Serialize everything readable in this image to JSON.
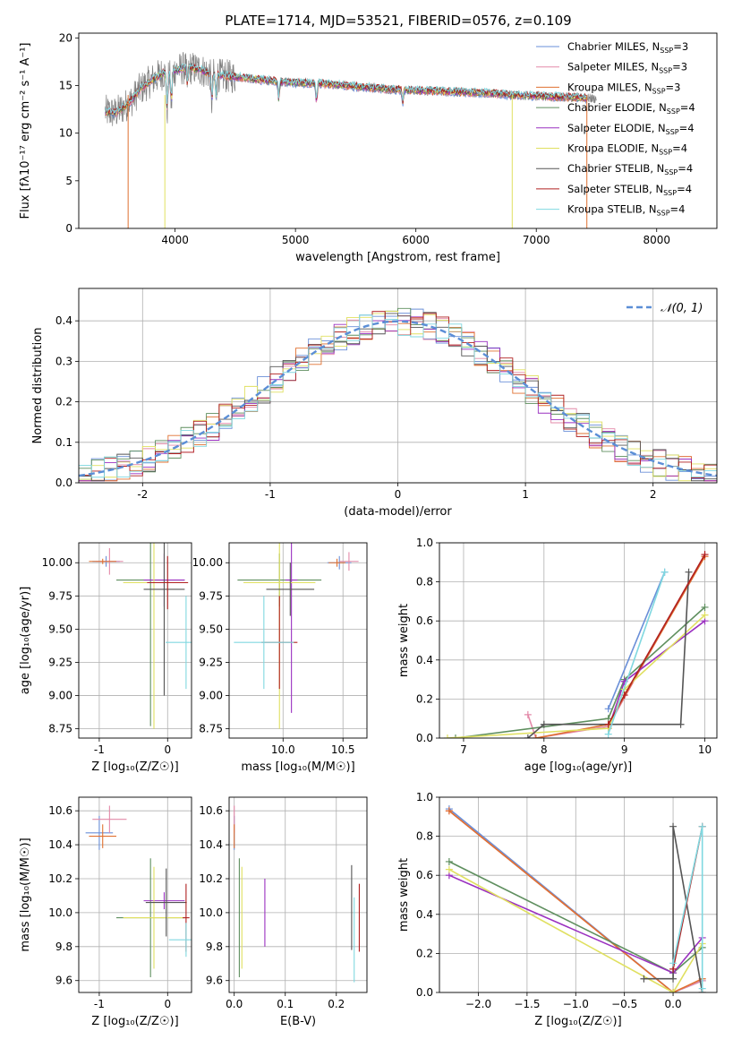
{
  "figure": {
    "title": "PLATE=1714, MJD=53521, FIBERID=0576, z=0.109"
  },
  "colors": {
    "series": [
      "#6a8fd8",
      "#e389a8",
      "#e07030",
      "#5f8f5f",
      "#9a30c0",
      "#e0e060",
      "#555555",
      "#b02020",
      "#80d8e0"
    ],
    "data_spectrum": "#808080",
    "normal_curve": "#5b8ed6",
    "grid": "#b0b0b0"
  },
  "legend_spectrum": [
    {
      "name": "Chabrier MILES",
      "nssp": "N",
      "sub": "SSP",
      "tail": "=3"
    },
    {
      "name": "Salpeter MILES",
      "nssp": "N",
      "sub": "SSP",
      "tail": "=3"
    },
    {
      "name": "Kroupa MILES",
      "nssp": "N",
      "sub": "SSP",
      "tail": "=3"
    },
    {
      "name": "Chabrier ELODIE",
      "nssp": "N",
      "sub": "SSP",
      "tail": "=4"
    },
    {
      "name": "Salpeter ELODIE",
      "nssp": "N",
      "sub": "SSP",
      "tail": "=4"
    },
    {
      "name": "Kroupa ELODIE",
      "nssp": "N",
      "sub": "SSP",
      "tail": "=4"
    },
    {
      "name": "Chabrier STELIB",
      "nssp": "N",
      "sub": "SSP",
      "tail": "=4"
    },
    {
      "name": "Salpeter STELIB",
      "nssp": "N",
      "sub": "SSP",
      "tail": "=4"
    },
    {
      "name": "Kroupa STELIB",
      "nssp": "N",
      "sub": "SSP",
      "tail": "=4"
    }
  ],
  "chart_data": [
    {
      "id": "spectrum",
      "type": "line",
      "xlabel": "wavelength [Angstrom, rest frame]",
      "ylabel": "Flux [fλ10⁻¹⁷ erg cm⁻² s⁻¹ A⁻¹]",
      "xlim": [
        3200,
        8500
      ],
      "ylim": [
        0,
        20.5
      ],
      "xticks": [
        4000,
        5000,
        6000,
        7000,
        8000
      ],
      "yticks": [
        0,
        5,
        10,
        15,
        20
      ],
      "grid": false,
      "legend": "upper-right",
      "continuum": {
        "x": [
          3400,
          3500,
          3550,
          3600,
          3650,
          3700,
          3750,
          3800,
          3850,
          3900,
          3950,
          4000,
          4100,
          4200,
          4300,
          4400,
          4500,
          4600,
          4700,
          4800,
          4900,
          5000,
          5200,
          5400,
          5600,
          5800,
          6000,
          6200,
          6400,
          6600,
          6800,
          7000,
          7200,
          7400,
          7500
        ],
        "y": [
          12.3,
          12.1,
          12.5,
          13.0,
          13.6,
          14.5,
          15.0,
          15.5,
          15.9,
          16.3,
          16.2,
          16.6,
          16.9,
          16.7,
          16.2,
          16.0,
          15.9,
          15.8,
          15.6,
          15.5,
          15.4,
          15.3,
          15.2,
          15.0,
          14.8,
          14.6,
          14.5,
          14.4,
          14.3,
          14.2,
          14.0,
          13.9,
          13.8,
          13.7,
          13.6
        ]
      },
      "data_x_range": [
        3420,
        7500
      ],
      "model_x_range": [
        3420,
        7420
      ]
    },
    {
      "id": "residuals",
      "type": "line",
      "xlabel": "(data-model)/error",
      "ylabel": "Normed distribution",
      "xlim": [
        -2.5,
        2.5
      ],
      "ylim": [
        0,
        0.48
      ],
      "xticks": [
        -2,
        -1,
        0,
        1,
        2
      ],
      "yticks": [
        0.0,
        0.1,
        0.2,
        0.3,
        0.4
      ],
      "grid": true,
      "legend": "upper-right",
      "legend_label": "𝒩(0, 1)",
      "normal": {
        "mu": 0,
        "sigma": 1
      },
      "bin_width": 0.1
    },
    {
      "id": "age_vs_Z",
      "type": "scatter",
      "xlabel": "Z [log₁₀(Z/Z☉)]",
      "ylabel": "age  [log₁₀(age/yr)]",
      "xlim": [
        -1.3,
        0.35
      ],
      "ylim": [
        8.68,
        10.15
      ],
      "xticks": [
        -1,
        0
      ],
      "yticks": [
        8.75,
        9.0,
        9.25,
        9.5,
        9.75,
        10.0
      ],
      "grid": true,
      "points": [
        {
          "s": 0,
          "x": -0.9,
          "y": 10.01,
          "xerr": 0.2,
          "yerr": 0.04
        },
        {
          "s": 1,
          "x": -0.85,
          "y": 10.01,
          "xerr": 0.2,
          "yerr": 0.1
        },
        {
          "s": 2,
          "x": -0.95,
          "y": 10.01,
          "xerr": 0.2,
          "yerr": 0.02
        },
        {
          "s": 3,
          "x": -0.25,
          "y": 9.87,
          "xerr": 0.5,
          "yerr": 1.1
        },
        {
          "s": 4,
          "x": -0.05,
          "y": 9.87,
          "xerr": 0.3,
          "yerr": 0.2
        },
        {
          "s": 5,
          "x": -0.2,
          "y": 9.85,
          "xerr": 0.45,
          "yerr": 1.1
        },
        {
          "s": 6,
          "x": -0.05,
          "y": 9.8,
          "xerr": 0.3,
          "yerr": 0.8
        },
        {
          "s": 7,
          "x": 0.0,
          "y": 9.85,
          "xerr": 0.3,
          "yerr": 0.2
        },
        {
          "s": 8,
          "x": 0.27,
          "y": 9.4,
          "xerr": 0.3,
          "yerr": 0.35
        }
      ]
    },
    {
      "id": "age_vs_mass",
      "type": "scatter",
      "xlabel": "mass [log₁₀(M/M☉)]",
      "ylabel": "",
      "xlim": [
        9.55,
        10.7
      ],
      "ylim": [
        8.68,
        10.15
      ],
      "xticks": [
        10.0,
        10.5
      ],
      "yticks": [
        8.75,
        9.0,
        9.25,
        9.5,
        9.75,
        10.0
      ],
      "grid": true,
      "points": [
        {
          "s": 0,
          "x": 10.47,
          "y": 10.0,
          "xerr": 0.1,
          "yerr": 0.05
        },
        {
          "s": 1,
          "x": 10.55,
          "y": 10.01,
          "xerr": 0.08,
          "yerr": 0.07
        },
        {
          "s": 2,
          "x": 10.45,
          "y": 10.0,
          "xerr": 0.07,
          "yerr": 0.03
        },
        {
          "s": 3,
          "x": 9.97,
          "y": 9.87,
          "xerr": 0.35,
          "yerr": 0.2
        },
        {
          "s": 4,
          "x": 10.07,
          "y": 9.87,
          "xerr": 0.05,
          "yerr": 1.0
        },
        {
          "s": 5,
          "x": 9.97,
          "y": 9.85,
          "xerr": 0.3,
          "yerr": 1.1
        },
        {
          "s": 6,
          "x": 10.06,
          "y": 9.8,
          "xerr": 0.2,
          "yerr": 0.2
        },
        {
          "s": 7,
          "x": 9.97,
          "y": 9.4,
          "xerr": 0.15,
          "yerr": 0.35
        },
        {
          "s": 8,
          "x": 9.84,
          "y": 9.4,
          "xerr": 0.25,
          "yerr": 0.35
        }
      ]
    },
    {
      "id": "weight_vs_age",
      "type": "line",
      "xlabel": "age  [log₁₀(age/yr)]",
      "ylabel": "mass weight",
      "xlim": [
        6.7,
        10.15
      ],
      "ylim": [
        0,
        1.0
      ],
      "xticks": [
        7,
        8,
        9,
        10
      ],
      "yticks": [
        0.0,
        0.2,
        0.4,
        0.6,
        0.8,
        1.0
      ],
      "grid": true,
      "series": [
        {
          "s": 0,
          "x": [
            8.8,
            9.5
          ],
          "y": [
            0.15,
            0.85
          ]
        },
        {
          "s": 1,
          "x": [
            7.8,
            7.9,
            8.8,
            10.0
          ],
          "y": [
            0.12,
            0.0,
            0.06,
            0.94
          ]
        },
        {
          "s": 2,
          "x": [
            7.9,
            8.8,
            10.0
          ],
          "y": [
            0.0,
            0.07,
            0.93
          ]
        },
        {
          "s": 3,
          "x": [
            6.9,
            8.8,
            9.0,
            10.0
          ],
          "y": [
            0.0,
            0.1,
            0.3,
            0.67
          ]
        },
        {
          "s": 4,
          "x": [
            8.8,
            9.0,
            10.0
          ],
          "y": [
            0.05,
            0.29,
            0.6
          ]
        },
        {
          "s": 5,
          "x": [
            6.8,
            8.8,
            9.0,
            10.0
          ],
          "y": [
            0.0,
            0.05,
            0.25,
            0.63
          ]
        },
        {
          "s": 6,
          "x": [
            7.8,
            8.0,
            9.7,
            9.8
          ],
          "y": [
            0.0,
            0.07,
            0.07,
            0.85
          ]
        },
        {
          "s": 7,
          "x": [
            8.8,
            9.0,
            10.0
          ],
          "y": [
            0.07,
            0.22,
            0.94
          ]
        },
        {
          "s": 8,
          "x": [
            8.8,
            9.5
          ],
          "y": [
            0.02,
            0.85
          ]
        }
      ]
    },
    {
      "id": "mass_vs_Z",
      "type": "scatter",
      "xlabel": "Z [log₁₀(Z/Z☉)]",
      "ylabel": "mass [log₁₀(M/M☉)]",
      "xlim": [
        -1.3,
        0.35
      ],
      "ylim": [
        9.53,
        10.68
      ],
      "xticks": [
        -1,
        0
      ],
      "yticks": [
        9.6,
        9.8,
        10.0,
        10.2,
        10.4,
        10.6
      ],
      "grid": true,
      "points": [
        {
          "s": 0,
          "x": -1.0,
          "y": 10.47,
          "xerr": 0.2,
          "yerr": 0.1
        },
        {
          "s": 1,
          "x": -0.85,
          "y": 10.55,
          "xerr": 0.25,
          "yerr": 0.08
        },
        {
          "s": 2,
          "x": -0.95,
          "y": 10.45,
          "xerr": 0.2,
          "yerr": 0.07
        },
        {
          "s": 3,
          "x": -0.25,
          "y": 9.97,
          "xerr": 0.5,
          "yerr": 0.35
        },
        {
          "s": 4,
          "x": -0.05,
          "y": 10.07,
          "xerr": 0.3,
          "yerr": 0.05
        },
        {
          "s": 5,
          "x": -0.2,
          "y": 9.97,
          "xerr": 0.45,
          "yerr": 0.3
        },
        {
          "s": 6,
          "x": -0.02,
          "y": 10.06,
          "xerr": 0.3,
          "yerr": 0.2
        },
        {
          "s": 7,
          "x": 0.27,
          "y": 9.97,
          "xerr": 0.05,
          "yerr": 0.2
        },
        {
          "s": 8,
          "x": 0.27,
          "y": 9.84,
          "xerr": 0.25,
          "yerr": 0.1
        }
      ]
    },
    {
      "id": "mass_vs_ebv",
      "type": "scatter",
      "xlabel": "E(B-V)",
      "ylabel": "",
      "xlim": [
        -0.01,
        0.26
      ],
      "ylim": [
        9.53,
        10.68
      ],
      "xticks": [
        0.0,
        0.1,
        0.2
      ],
      "yticks": [
        9.6,
        9.8,
        10.0,
        10.2,
        10.4,
        10.6
      ],
      "grid": true,
      "points": [
        {
          "s": 0,
          "x": 0.0,
          "y": 10.47,
          "xerr": 0,
          "yerr": 0.1
        },
        {
          "s": 1,
          "x": 0.0,
          "y": 10.55,
          "xerr": 0,
          "yerr": 0.08
        },
        {
          "s": 2,
          "x": 0.0,
          "y": 10.45,
          "xerr": 0,
          "yerr": 0.07
        },
        {
          "s": 3,
          "x": 0.01,
          "y": 9.97,
          "xerr": 0,
          "yerr": 0.35
        },
        {
          "s": 4,
          "x": 0.06,
          "y": 10.0,
          "xerr": 0,
          "yerr": 0.2
        },
        {
          "s": 5,
          "x": 0.015,
          "y": 9.97,
          "xerr": 0,
          "yerr": 0.3
        },
        {
          "s": 6,
          "x": 0.23,
          "y": 10.03,
          "xerr": 0,
          "yerr": 0.25
        },
        {
          "s": 7,
          "x": 0.245,
          "y": 9.97,
          "xerr": 0,
          "yerr": 0.2
        },
        {
          "s": 8,
          "x": 0.235,
          "y": 9.84,
          "xerr": 0,
          "yerr": 0.25
        }
      ]
    },
    {
      "id": "weight_vs_Z",
      "type": "line",
      "xlabel": "Z [log₁₀(Z/Z☉)]",
      "ylabel": "mass weight",
      "xlim": [
        -2.4,
        0.45
      ],
      "ylim": [
        0,
        1.0
      ],
      "xticks": [
        -2.0,
        -1.5,
        -1.0,
        -0.5,
        0.0
      ],
      "yticks": [
        0.0,
        0.2,
        0.4,
        0.6,
        0.8,
        1.0
      ],
      "grid": true,
      "series": [
        {
          "s": 0,
          "x": [
            -2.3,
            0.0,
            0.3
          ],
          "y": [
            0.94,
            0.0,
            0.06
          ]
        },
        {
          "s": 1,
          "x": [
            -2.3,
            0.0,
            0.3
          ],
          "y": [
            0.93,
            0.0,
            0.06
          ]
        },
        {
          "s": 2,
          "x": [
            -2.3,
            0.0,
            0.3
          ],
          "y": [
            0.93,
            0.0,
            0.07
          ]
        },
        {
          "s": 3,
          "x": [
            -2.3,
            0.0,
            0.3
          ],
          "y": [
            0.67,
            0.1,
            0.23
          ]
        },
        {
          "s": 4,
          "x": [
            -2.3,
            0.0,
            0.3
          ],
          "y": [
            0.6,
            0.1,
            0.28
          ]
        },
        {
          "s": 5,
          "x": [
            -2.3,
            0.0,
            0.3
          ],
          "y": [
            0.63,
            0.0,
            0.25
          ]
        },
        {
          "s": 6,
          "x": [
            -0.3,
            0.0,
            0.0,
            0.3
          ],
          "y": [
            0.07,
            0.07,
            0.85,
            0.0
          ]
        },
        {
          "s": 7,
          "x": [
            0.0,
            0.3
          ],
          "y": [
            0.12,
            0.85
          ]
        },
        {
          "s": 8,
          "x": [
            0.0,
            0.3,
            0.3
          ],
          "y": [
            0.15,
            0.85,
            0.02
          ]
        }
      ]
    }
  ]
}
